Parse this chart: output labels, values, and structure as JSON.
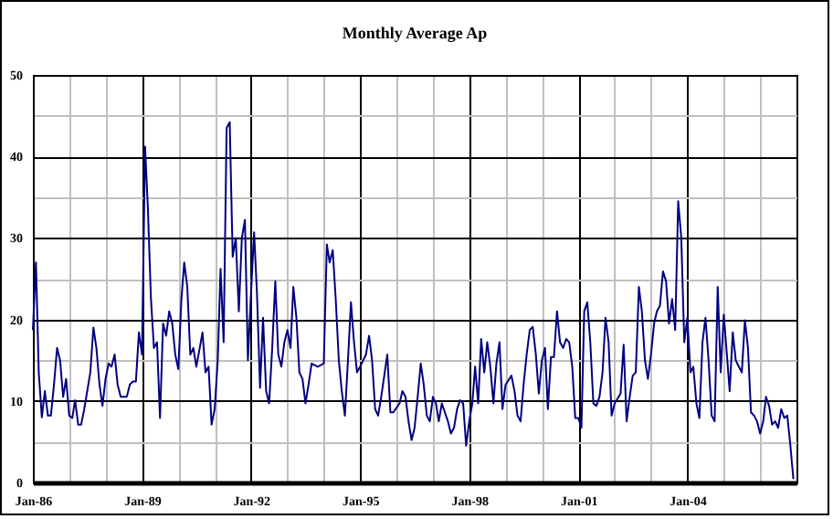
{
  "chart_data": {
    "type": "line",
    "title": "Monthly Average Ap",
    "x": [
      "1986-01",
      "1986-02",
      "1986-03",
      "1986-04",
      "1986-05",
      "1986-06",
      "1986-07",
      "1986-08",
      "1986-09",
      "1986-10",
      "1986-11",
      "1986-12",
      "1987-01",
      "1987-02",
      "1987-03",
      "1987-04",
      "1987-05",
      "1987-06",
      "1987-08",
      "1987-09",
      "1987-10",
      "1987-11",
      "1987-12",
      "1988-01",
      "1988-02",
      "1988-03",
      "1988-04",
      "1988-05",
      "1988-06",
      "1988-08",
      "1988-09",
      "1988-10",
      "1988-11",
      "1988-12",
      "1989-01",
      "1989-02",
      "1989-03",
      "1989-04",
      "1989-05",
      "1989-06",
      "1989-07",
      "1989-08",
      "1989-09",
      "1989-10",
      "1989-11",
      "1989-12",
      "1990-01",
      "1990-02",
      "1990-03",
      "1990-04",
      "1990-05",
      "1990-06",
      "1990-07",
      "1990-09",
      "1990-10",
      "1990-11",
      "1990-12",
      "1991-01",
      "1991-02",
      "1991-03",
      "1991-04",
      "1991-05",
      "1991-06",
      "1991-07",
      "1991-08",
      "1991-09",
      "1991-10",
      "1991-11",
      "1991-12",
      "1992-01",
      "1992-02",
      "1992-03",
      "1992-04",
      "1992-05",
      "1992-06",
      "1992-07",
      "1992-08",
      "1992-09",
      "1992-10",
      "1992-11",
      "1992-12",
      "1993-01",
      "1993-02",
      "1993-03",
      "1993-04",
      "1993-05",
      "1993-06",
      "1993-07",
      "1993-08",
      "1993-09",
      "1993-11",
      "1994-01",
      "1994-02",
      "1994-03",
      "1994-04",
      "1994-05",
      "1994-06",
      "1994-07",
      "1994-08",
      "1994-09",
      "1994-10",
      "1994-11",
      "1994-12",
      "1995-01",
      "1995-02",
      "1995-03",
      "1995-04",
      "1995-05",
      "1995-06",
      "1995-07",
      "1995-08",
      "1995-10",
      "1995-11",
      "1995-12",
      "1996-02",
      "1996-03",
      "1996-04",
      "1996-05",
      "1996-06",
      "1996-07",
      "1996-08",
      "1996-09",
      "1996-10",
      "1996-11",
      "1996-12",
      "1997-01",
      "1997-02",
      "1997-03",
      "1997-04",
      "1997-05",
      "1997-06",
      "1997-07",
      "1997-08",
      "1997-09",
      "1997-10",
      "1997-11",
      "1997-12",
      "1998-01",
      "1998-02",
      "1998-03",
      "1998-04",
      "1998-05",
      "1998-06",
      "1998-07",
      "1998-08",
      "1998-09",
      "1998-10",
      "1998-11",
      "1998-12",
      "1999-01",
      "1999-03",
      "1999-04",
      "1999-05",
      "1999-06",
      "1999-07",
      "1999-08",
      "1999-09",
      "1999-10",
      "1999-11",
      "1999-12",
      "2000-01",
      "2000-02",
      "2000-03",
      "2000-04",
      "2000-05",
      "2000-06",
      "2000-07",
      "2000-08",
      "2000-09",
      "2000-10",
      "2000-11",
      "2000-12",
      "2001-01",
      "2001-02",
      "2001-03",
      "2001-04",
      "2001-05",
      "2001-06",
      "2001-07",
      "2001-08",
      "2001-09",
      "2001-10",
      "2001-11",
      "2001-12",
      "2002-01",
      "2002-03",
      "2002-04",
      "2002-05",
      "2002-06",
      "2002-07",
      "2002-08",
      "2002-09",
      "2002-10",
      "2002-11",
      "2002-12",
      "2003-01",
      "2003-02",
      "2003-03",
      "2003-04",
      "2003-05",
      "2003-06",
      "2003-07",
      "2003-08",
      "2003-09",
      "2003-10",
      "2003-11",
      "2003-12",
      "2004-01",
      "2004-02",
      "2004-03",
      "2004-04",
      "2004-05",
      "2004-06",
      "2004-07",
      "2004-08",
      "2004-09",
      "2004-10",
      "2004-11",
      "2004-12",
      "2005-01",
      "2005-02",
      "2005-03",
      "2005-04",
      "2005-05",
      "2005-06",
      "2005-07",
      "2005-08",
      "2005-09",
      "2005-10",
      "2005-11",
      "2005-12",
      "2006-01",
      "2006-02",
      "2006-03",
      "2006-04",
      "2006-05",
      "2006-06",
      "2006-07",
      "2006-08",
      "2006-09",
      "2006-10",
      "2006-11",
      "2006-12"
    ],
    "series": [
      {
        "color": "#000080",
        "values": [
          18.7,
          27,
          13.5,
          8,
          11.2,
          8.2,
          8.2,
          12,
          16.5,
          15,
          10.5,
          12.7,
          8.2,
          7.9,
          10.1,
          7.1,
          7.1,
          9,
          13.5,
          19,
          16.5,
          12,
          9.4,
          12.7,
          14.6,
          14.2,
          15.7,
          12,
          10.5,
          10.5,
          12,
          12.4,
          12.4,
          18.4,
          15.7,
          41.2,
          33.7,
          22.5,
          16.5,
          17.2,
          7.9,
          19.5,
          18,
          21,
          19.5,
          15.7,
          13.9,
          22.5,
          27,
          24,
          15.7,
          16.5,
          14.2,
          18.4,
          13.5,
          14.2,
          7.1,
          9,
          15,
          26.2,
          17.2,
          43.5,
          44.2,
          27.7,
          30,
          21,
          30,
          32.2,
          15,
          23.2,
          30.7,
          23.2,
          11.6,
          20.2,
          11.2,
          9.7,
          16.5,
          24.7,
          15.7,
          14.2,
          17.2,
          18.7,
          16.5,
          24,
          20.2,
          13.5,
          12.7,
          9.7,
          12,
          14.6,
          14.2,
          14.6,
          29.2,
          27,
          28.5,
          22.5,
          15,
          11.2,
          8.2,
          15,
          22.1,
          17.2,
          13.5,
          14.2,
          15,
          15.7,
          18,
          15,
          9,
          8.2,
          10.5,
          15.7,
          8.6,
          8.6,
          9.7,
          11.2,
          10.5,
          7.5,
          5.2,
          6.7,
          10.5,
          14.6,
          12,
          8.2,
          7.5,
          10.5,
          9.7,
          7.5,
          9.7,
          8.6,
          7.5,
          6,
          6.7,
          9,
          10.1,
          9.7,
          4.5,
          7.5,
          9.7,
          14.2,
          9.7,
          17.6,
          13.5,
          17.2,
          14.2,
          9.7,
          14.6,
          17.2,
          9,
          12,
          13.1,
          11.2,
          8.2,
          7.5,
          12,
          15.7,
          18.7,
          19.1,
          15.7,
          10.9,
          15,
          16.5,
          9,
          15.4,
          15.4,
          21,
          17.2,
          16.5,
          17.6,
          17.2,
          14.2,
          7.9,
          7.9,
          6.7,
          21,
          22.1,
          17.2,
          9.7,
          9.4,
          10.5,
          13.5,
          20.2,
          17.2,
          8.2,
          9.7,
          10.9,
          16.9,
          7.5,
          10.5,
          13.1,
          13.5,
          24,
          21,
          15,
          12.7,
          15.7,
          19.5,
          21,
          21.7,
          25.9,
          24.7,
          19.5,
          22.5,
          18.7,
          34.5,
          30,
          17.2,
          20.2,
          13.5,
          14.2,
          9.7,
          7.9,
          17.2,
          20.2,
          15,
          8.2,
          7.5,
          24,
          13.5,
          20.6,
          15.7,
          11.2,
          18.4,
          15,
          14.2,
          13.5,
          19.9,
          16.5,
          8.6,
          8.2,
          7.5,
          6,
          7.5,
          10.5,
          9.4,
          7.1,
          7.5,
          6.7,
          9,
          7.9,
          8.2,
          4.5,
          0.4
        ]
      }
    ],
    "xlim": [
      "1986-01",
      "2007-01"
    ],
    "xticks": [
      {
        "value": "1986-01",
        "label": "Jan-86"
      },
      {
        "value": "1987-01",
        "label": null
      },
      {
        "value": "1988-01",
        "label": null
      },
      {
        "value": "1989-01",
        "label": "Jan-89"
      },
      {
        "value": "1990-01",
        "label": null
      },
      {
        "value": "1991-01",
        "label": null
      },
      {
        "value": "1992-01",
        "label": "Jan-92"
      },
      {
        "value": "1993-01",
        "label": null
      },
      {
        "value": "1994-01",
        "label": null
      },
      {
        "value": "1995-01",
        "label": "Jan-95"
      },
      {
        "value": "1996-01",
        "label": null
      },
      {
        "value": "1997-01",
        "label": null
      },
      {
        "value": "1998-01",
        "label": "Jan-98"
      },
      {
        "value": "1999-01",
        "label": null
      },
      {
        "value": "2000-01",
        "label": null
      },
      {
        "value": "2001-01",
        "label": "Jan-01"
      },
      {
        "value": "2002-01",
        "label": null
      },
      {
        "value": "2003-01",
        "label": null
      },
      {
        "value": "2004-01",
        "label": "Jan-04"
      },
      {
        "value": "2005-01",
        "label": null
      },
      {
        "value": "2006-01",
        "label": null
      }
    ],
    "ylim": [
      0,
      50
    ],
    "yticks": [
      0,
      {
        "value": 5,
        "label": null
      },
      10,
      {
        "value": 15,
        "label": null
      },
      20,
      {
        "value": 25,
        "label": null
      },
      30,
      {
        "value": 35,
        "label": null
      },
      40,
      {
        "value": 45,
        "label": null
      },
      50
    ],
    "grid": true,
    "marker": "none",
    "line_style": "solid"
  }
}
